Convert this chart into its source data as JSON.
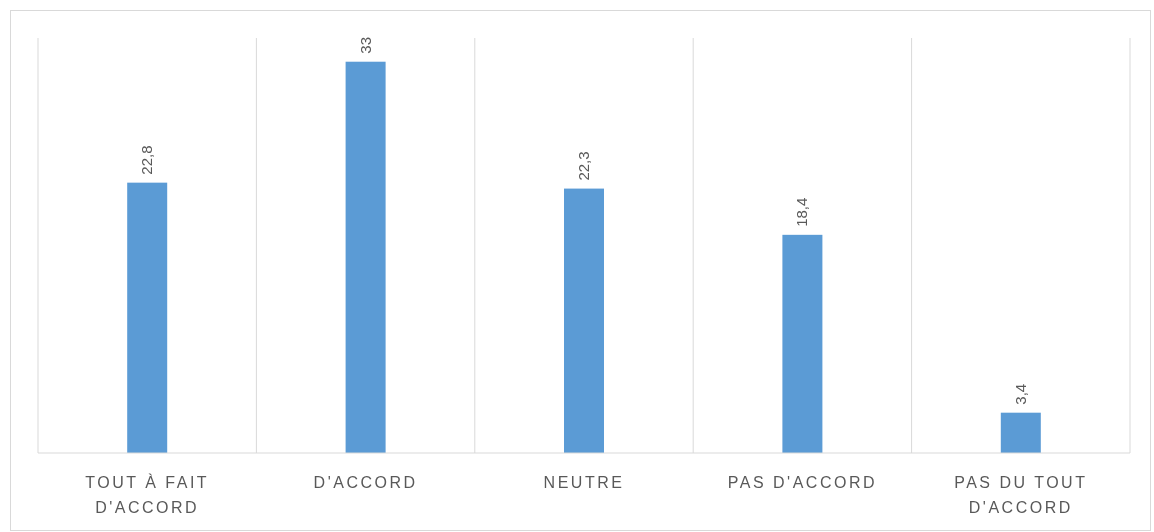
{
  "chart_data": {
    "type": "bar",
    "categories": [
      "TOUT À FAIT D'ACCORD",
      "D'ACCORD",
      "NEUTRE",
      "PAS D'ACCORD",
      "PAS DU TOUT D'ACCORD"
    ],
    "values": [
      22.8,
      33,
      22.3,
      18.4,
      3.4
    ],
    "value_labels": [
      "22,8",
      "33",
      "22,3",
      "18,4",
      "3,4"
    ],
    "color": "#5b9bd5",
    "ylim": [
      0,
      35
    ],
    "grid": "x",
    "tick_labels": "x"
  }
}
